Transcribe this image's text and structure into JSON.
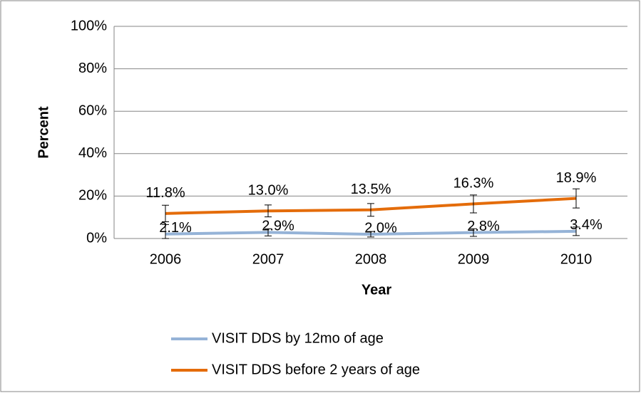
{
  "chart_data": {
    "type": "line",
    "y_label": "Percent",
    "x_label": "Year",
    "categories": [
      "2006",
      "2007",
      "2008",
      "2009",
      "2010"
    ],
    "series": [
      {
        "name": "VISIT DDS by 12mo of age",
        "color": "#95b3d7",
        "values": [
          2.1,
          2.9,
          2.0,
          2.8,
          3.4
        ],
        "value_labels": [
          "2.1%",
          "2.9%",
          "2.0%",
          "2.8%",
          "3.4%"
        ],
        "errors": [
          4.5,
          1.7,
          1.3,
          1.8,
          2.0
        ]
      },
      {
        "name": "VISIT DDS before 2 years of age",
        "color": "#e46c0a",
        "values": [
          11.8,
          13.0,
          13.5,
          16.3,
          18.9
        ],
        "value_labels": [
          "11.8%",
          "13.0%",
          "13.5%",
          "16.3%",
          "18.9%"
        ],
        "errors": [
          3.9,
          2.8,
          3.0,
          4.2,
          4.5
        ]
      }
    ],
    "ylim": [
      0,
      100
    ],
    "yticks": [
      {
        "value": 0,
        "label": "0%"
      },
      {
        "value": 20,
        "label": "20%"
      },
      {
        "value": 40,
        "label": "40%"
      },
      {
        "value": 60,
        "label": "60%"
      },
      {
        "value": 80,
        "label": "80%"
      },
      {
        "value": 100,
        "label": "100%"
      }
    ],
    "grid": true
  }
}
